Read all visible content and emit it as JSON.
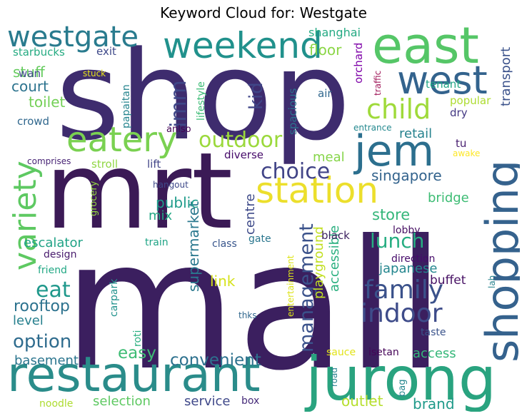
{
  "title": "Keyword Cloud for: Westgate",
  "words": [
    {
      "key": "mall",
      "text": "mall",
      "color": "#3b1f5f"
    },
    {
      "key": "shop",
      "text": "shop",
      "color": "#3e2c6e"
    },
    {
      "key": "mrt",
      "text": "mrt",
      "color": "#3b1a56"
    },
    {
      "key": "restaurant",
      "text": "restaurant",
      "color": "#2a8c8a"
    },
    {
      "key": "jurong",
      "text": "jurong",
      "color": "#29a37f"
    },
    {
      "key": "east",
      "text": "east",
      "color": "#55c667"
    },
    {
      "key": "shopping",
      "text": "shopping",
      "color": "#35628d"
    },
    {
      "key": "station",
      "text": "station",
      "color": "#ecdf2c"
    },
    {
      "key": "jem",
      "text": "jem",
      "color": "#2c6f8e"
    },
    {
      "key": "weekend",
      "text": "weekend",
      "color": "#21918c"
    },
    {
      "key": "west",
      "text": "west",
      "color": "#33638d"
    },
    {
      "key": "westgate",
      "text": "westgate",
      "color": "#297b8e"
    },
    {
      "key": "eatery",
      "text": "eatery",
      "color": "#7ad151"
    },
    {
      "key": "variety",
      "text": "variety",
      "color": "#5ec962"
    },
    {
      "key": "child",
      "text": "child",
      "color": "#9fda3a"
    },
    {
      "key": "family",
      "text": "family",
      "color": "#3b528b"
    },
    {
      "key": "indoor",
      "text": "indoor",
      "color": "#3e4c8a"
    },
    {
      "key": "choice",
      "text": "choice",
      "color": "#414487"
    },
    {
      "key": "outdoor",
      "text": "outdoor",
      "color": "#9bd93c"
    },
    {
      "key": "management",
      "text": "management",
      "color": "#3b528b"
    },
    {
      "key": "eat",
      "text": "eat",
      "color": "#1f988b"
    },
    {
      "key": "lunch",
      "text": "lunch",
      "color": "#26ad81"
    },
    {
      "key": "option",
      "text": "option",
      "color": "#2f6c8e"
    },
    {
      "key": "imm",
      "text": "imm",
      "color": "#3f4788"
    },
    {
      "key": "convenient",
      "text": "convenient",
      "color": "#2d718e"
    },
    {
      "key": "easy",
      "text": "easy",
      "color": "#3dbc74"
    },
    {
      "key": "singapore",
      "text": "singapore",
      "color": "#33638d"
    },
    {
      "key": "store",
      "text": "store",
      "color": "#34b679"
    },
    {
      "key": "kid",
      "text": "kid",
      "color": "#404688"
    },
    {
      "key": "rooftop",
      "text": "rooftop",
      "color": "#2c728e"
    },
    {
      "key": "supermarket",
      "text": "supermarket",
      "color": "#2a788e"
    },
    {
      "key": "public",
      "text": "public",
      "color": "#1e9b8a"
    },
    {
      "key": "court",
      "text": "court",
      "color": "#2c738e"
    },
    {
      "key": "toilet",
      "text": "toilet",
      "color": "#73d056"
    },
    {
      "key": "stuff",
      "text": "stuff",
      "color": "#65cb5e"
    },
    {
      "key": "floor",
      "text": "floor",
      "color": "#8bd646"
    },
    {
      "key": "basement",
      "text": "basement",
      "color": "#2b758e"
    },
    {
      "key": "brand",
      "text": "brand",
      "color": "#1f9a8a"
    },
    {
      "key": "outlet",
      "text": "outlet",
      "color": "#b5de2b"
    },
    {
      "key": "service",
      "text": "service",
      "color": "#3f4889"
    },
    {
      "key": "selection",
      "text": "selection",
      "color": "#5ec962"
    },
    {
      "key": "access",
      "text": "access",
      "color": "#35b779"
    },
    {
      "key": "level",
      "text": "level",
      "color": "#27808e"
    },
    {
      "key": "escalator",
      "text": "escalator",
      "color": "#20a386"
    },
    {
      "key": "transport",
      "text": "transport",
      "color": "#3b528b"
    },
    {
      "key": "retail",
      "text": "retail",
      "color": "#26828e"
    },
    {
      "key": "meal",
      "text": "meal",
      "color": "#86d549"
    },
    {
      "key": "mix",
      "text": "mix",
      "color": "#22a785"
    },
    {
      "key": "link",
      "text": "link",
      "color": "#d5e21a"
    },
    {
      "key": "playground",
      "text": "playground",
      "color": "#c2df23"
    },
    {
      "key": "accessible",
      "text": "accessible",
      "color": "#29af7f"
    },
    {
      "key": "japanese",
      "text": "japanese",
      "color": "#24868e"
    },
    {
      "key": "buffet",
      "text": "buffet",
      "color": "#471164"
    },
    {
      "key": "bridge",
      "text": "bridge",
      "color": "#3dbc74"
    },
    {
      "key": "centre",
      "text": "centre",
      "color": "#3e4a89"
    },
    {
      "key": "shanghai",
      "text": "shanghai",
      "color": "#24aa83"
    },
    {
      "key": "orchard",
      "text": "orchard",
      "color": "#7e03a8"
    },
    {
      "key": "tenant",
      "text": "tenant",
      "color": "#21a685"
    },
    {
      "key": "traffic",
      "text": "traffic",
      "color": "#a11a5b"
    },
    {
      "key": "popular",
      "text": "popular",
      "color": "#addc30"
    },
    {
      "key": "dry",
      "text": "dry",
      "color": "#443983"
    },
    {
      "key": "tu",
      "text": "tu",
      "color": "#481f70"
    },
    {
      "key": "awake",
      "text": "awake",
      "color": "#fde725"
    },
    {
      "key": "entrance",
      "text": "entrance",
      "color": "#23888e"
    },
    {
      "key": "air",
      "text": "air",
      "color": "#31688e"
    },
    {
      "key": "spacious",
      "text": "spacious",
      "color": "#2c728e"
    },
    {
      "key": "lifestyle",
      "text": "lifestyle",
      "color": "#3bbb75"
    },
    {
      "key": "papaitan",
      "text": "papaitan",
      "color": "#25848e"
    },
    {
      "key": "stuck",
      "text": "stuck",
      "color": "#e7e419"
    },
    {
      "key": "starbucks",
      "text": "starbucks",
      "color": "#25ab82"
    },
    {
      "key": "exit",
      "text": "exit",
      "color": "#3e4989"
    },
    {
      "key": "wan",
      "text": "wan",
      "color": "#3e4a89"
    },
    {
      "key": "crowd",
      "text": "crowd",
      "color": "#31688e"
    },
    {
      "key": "anlso",
      "text": "anlso",
      "color": "#440154"
    },
    {
      "key": "comprises",
      "text": "comprises",
      "color": "#482475"
    },
    {
      "key": "stroll",
      "text": "stroll",
      "color": "#90d743"
    },
    {
      "key": "lift",
      "text": "lift",
      "color": "#414487"
    },
    {
      "key": "diverse",
      "text": "diverse",
      "color": "#450a69"
    },
    {
      "key": "hangout",
      "text": "hangout",
      "color": "#3e4989"
    },
    {
      "key": "grocery",
      "text": "grocery",
      "color": "#93d741"
    },
    {
      "key": "design",
      "text": "design",
      "color": "#481b6d"
    },
    {
      "key": "friend",
      "text": "friend",
      "color": "#22a884"
    },
    {
      "key": "train",
      "text": "train",
      "color": "#20a486"
    },
    {
      "key": "class",
      "text": "class",
      "color": "#39568c"
    },
    {
      "key": "gate",
      "text": "gate",
      "color": "#2a768e"
    },
    {
      "key": "black",
      "text": "black",
      "color": "#3b1f5f"
    },
    {
      "key": "lobby",
      "text": "lobby",
      "color": "#471063"
    },
    {
      "key": "direction",
      "text": "direction",
      "color": "#460b6a"
    },
    {
      "key": "lah",
      "text": "lah",
      "color": "#26828e"
    },
    {
      "key": "entertainment",
      "text": "entertainment",
      "color": "#dde318"
    },
    {
      "key": "carpark",
      "text": "carpark",
      "color": "#20928c"
    },
    {
      "key": "roti",
      "text": "roti",
      "color": "#29af7f"
    },
    {
      "key": "thks",
      "text": "thks",
      "color": "#31688e"
    },
    {
      "key": "taste",
      "text": "taste",
      "color": "#3a538b"
    },
    {
      "key": "sauce",
      "text": "sauce",
      "color": "#e2e418"
    },
    {
      "key": "isetan",
      "text": "isetan",
      "color": "#450457"
    },
    {
      "key": "road",
      "text": "road",
      "color": "#27808e"
    },
    {
      "key": "bag",
      "text": "bag",
      "color": "#24878e"
    },
    {
      "key": "box",
      "text": "box",
      "color": "#472c7a"
    },
    {
      "key": "noodle",
      "text": "noodle",
      "color": "#addc30"
    }
  ]
}
